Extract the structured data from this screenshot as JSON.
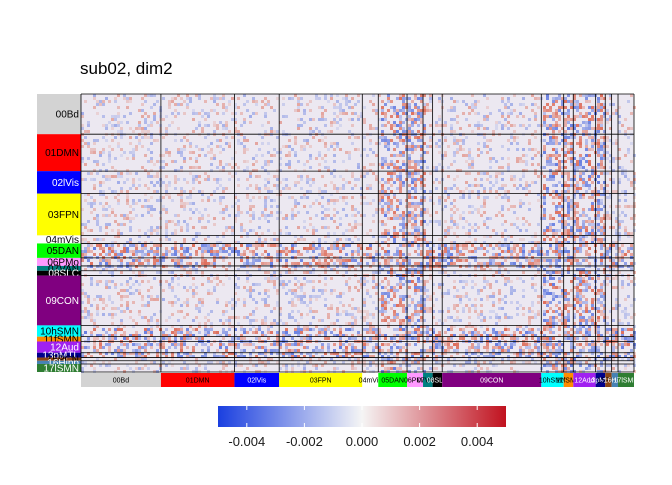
{
  "chart_data": {
    "type": "heatmap",
    "title": "sub02, dim2",
    "networks": [
      {
        "label": "00Bd",
        "size": 25,
        "color": "#d3d3d3",
        "text_color": "#000000"
      },
      {
        "label": "01DMN",
        "size": 23,
        "color": "#ff0000",
        "text_color": "#000000"
      },
      {
        "label": "02lVis",
        "size": 14,
        "color": "#0000ff",
        "text_color": "#ffffff"
      },
      {
        "label": "03FPN",
        "size": 26,
        "color": "#ffff00",
        "text_color": "#000000"
      },
      {
        "label": "04mVis",
        "size": 5,
        "color": "#ffffff",
        "text_color": "#000000"
      },
      {
        "label": "05DAN",
        "size": 9,
        "color": "#00ff00",
        "text_color": "#000000"
      },
      {
        "label": "06PMo",
        "size": 5,
        "color": "#ff99ff",
        "text_color": "#000000"
      },
      {
        "label": "07VAN",
        "size": 3,
        "color": "#008080",
        "text_color": "#000000"
      },
      {
        "label": "08SLC",
        "size": 3,
        "color": "#000000",
        "text_color": "#ffffff"
      },
      {
        "label": "09CON",
        "size": 31,
        "color": "#800080",
        "text_color": "#ffffff"
      },
      {
        "label": "10hSMN",
        "size": 7,
        "color": "#00ffff",
        "text_color": "#000000"
      },
      {
        "label": "11fSMN",
        "size": 3,
        "color": "#ff8c00",
        "text_color": "#000000"
      },
      {
        "label": "12Aud",
        "size": 7,
        "color": "#a020f0",
        "text_color": "#ffffff"
      },
      {
        "label": "13pMTL",
        "size": 3,
        "color": "#00008b",
        "text_color": "#ffffff"
      },
      {
        "label": "15PCN",
        "size": 2,
        "color": "#8b4513",
        "text_color": "#000000"
      },
      {
        "label": "16Hipp",
        "size": 2,
        "color": "#4682b4",
        "text_color": "#ffffff"
      },
      {
        "label": "17lSMN",
        "size": 5,
        "color": "#2e7d32",
        "text_color": "#ffffff"
      }
    ],
    "colorbar": {
      "min": -0.005,
      "max": 0.005,
      "ticks": [
        -0.004,
        -0.002,
        0.0,
        0.002,
        0.004
      ],
      "tick_labels": [
        "-0.004",
        "-0.002",
        "0.000",
        "0.002",
        "0.004"
      ],
      "low_color": "#1a3fe0",
      "mid_color": "#f5f5f5",
      "high_color": "#c1121f"
    },
    "matrix_summary": "sparse weak correlations near 0; stronger positive (red) and negative (blue) values concentrated in 05DAN, 06PMo, 10hSMN, 12Aud and 13pMTL blocks",
    "grid": false,
    "legend": "colorbar-bottom"
  }
}
